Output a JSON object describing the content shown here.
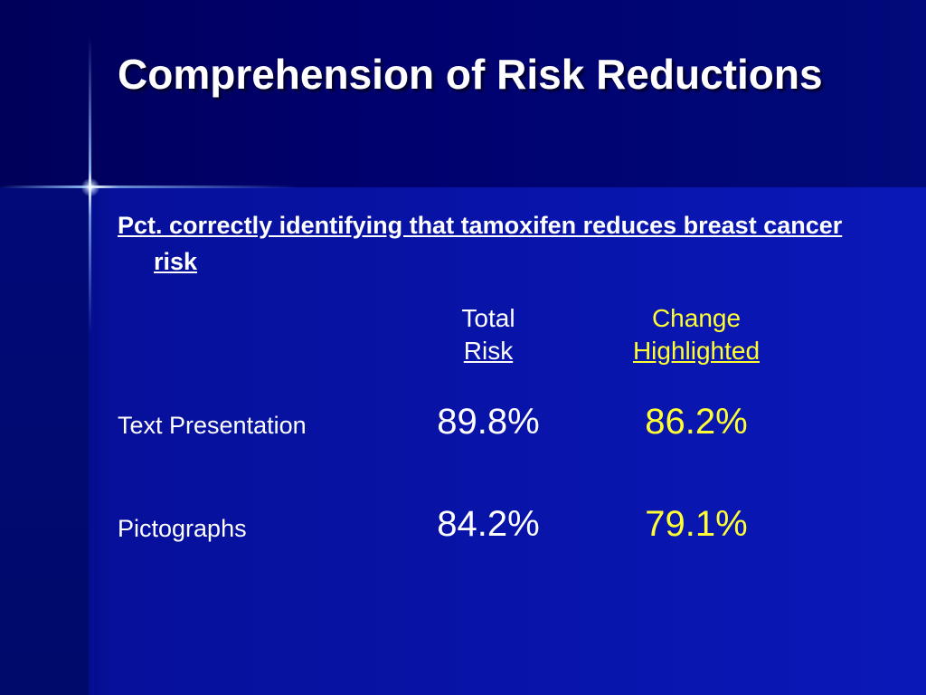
{
  "slide": {
    "title": "Comprehension of Risk Reductions",
    "subtitle": "Pct. correctly identifying that tamoxifen reduces breast cancer risk",
    "columns": [
      {
        "line1": "Total",
        "line2": "Risk"
      },
      {
        "line1": "Change",
        "line2": "Highlighted"
      }
    ],
    "rows": [
      {
        "label": "Text Presentation",
        "total_risk": "89.8%",
        "change_highlighted": "86.2%"
      },
      {
        "label": "Pictographs",
        "total_risk": "84.2%",
        "change_highlighted": "79.1%"
      }
    ]
  },
  "colors": {
    "background": "#0a18b8",
    "title_band": "#00006e",
    "text": "#ffffff",
    "highlight": "#ffff33"
  }
}
